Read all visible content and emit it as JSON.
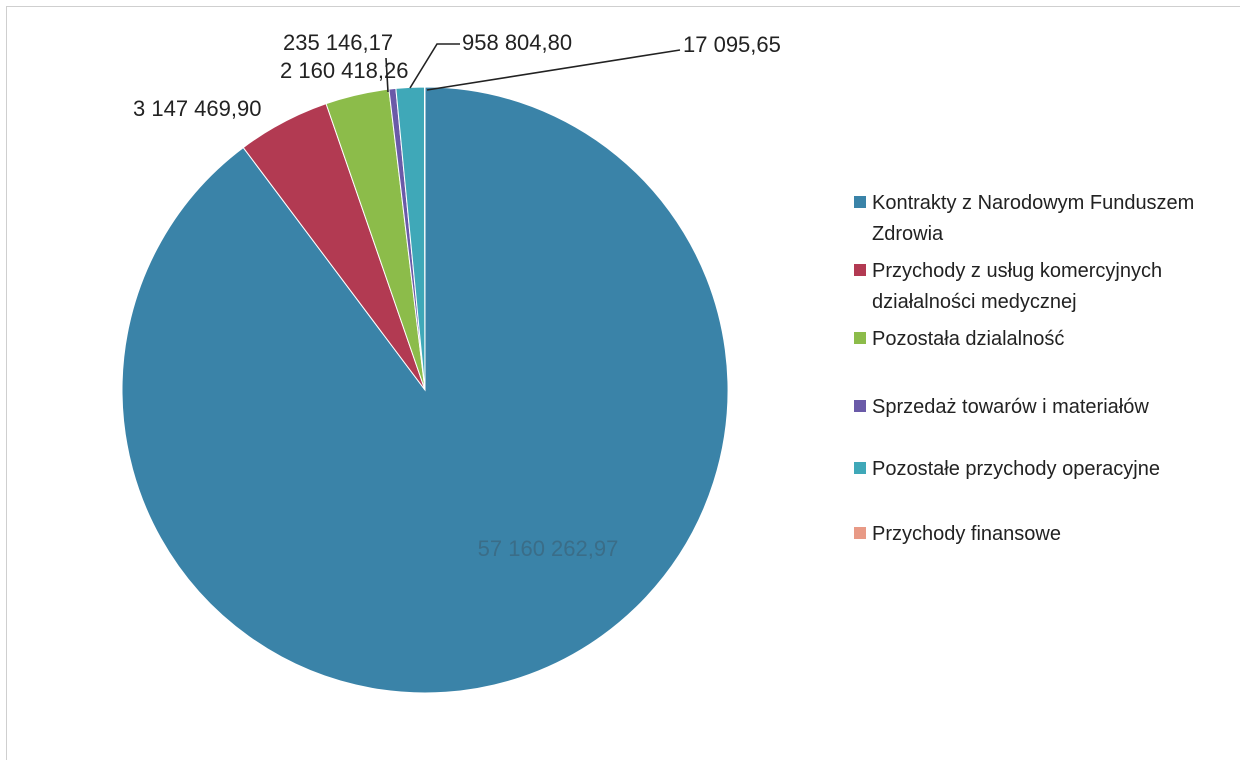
{
  "chart_data": {
    "type": "pie",
    "title": "",
    "legend_position": "right",
    "slices": [
      {
        "label": "Kontrakty z Narodowym Funduszem Zdrowia",
        "value": 57160262.97,
        "value_text": "57 160 262,97",
        "color": "#3a83a8"
      },
      {
        "label": "Przychody z usług komercyjnych działalności medycznej",
        "value": 3147469.9,
        "value_text": "3 147 469,90",
        "color": "#b23a52"
      },
      {
        "label": "Pozostała dzialalność",
        "value": 2160418.26,
        "value_text": "2 160 418,26",
        "color": "#8cbc4a"
      },
      {
        "label": "Sprzedaż towarów i materiałów",
        "value": 235146.17,
        "value_text": "235 146,17",
        "color": "#6a5aa8"
      },
      {
        "label": "Pozostałe przychody operacyjne",
        "value": 958804.8,
        "value_text": "958 804,80",
        "color": "#3fa8b8"
      },
      {
        "label": "Przychody finansowe",
        "value": 17095.65,
        "value_text": "17 095,65",
        "color": "#e89a86"
      }
    ]
  }
}
